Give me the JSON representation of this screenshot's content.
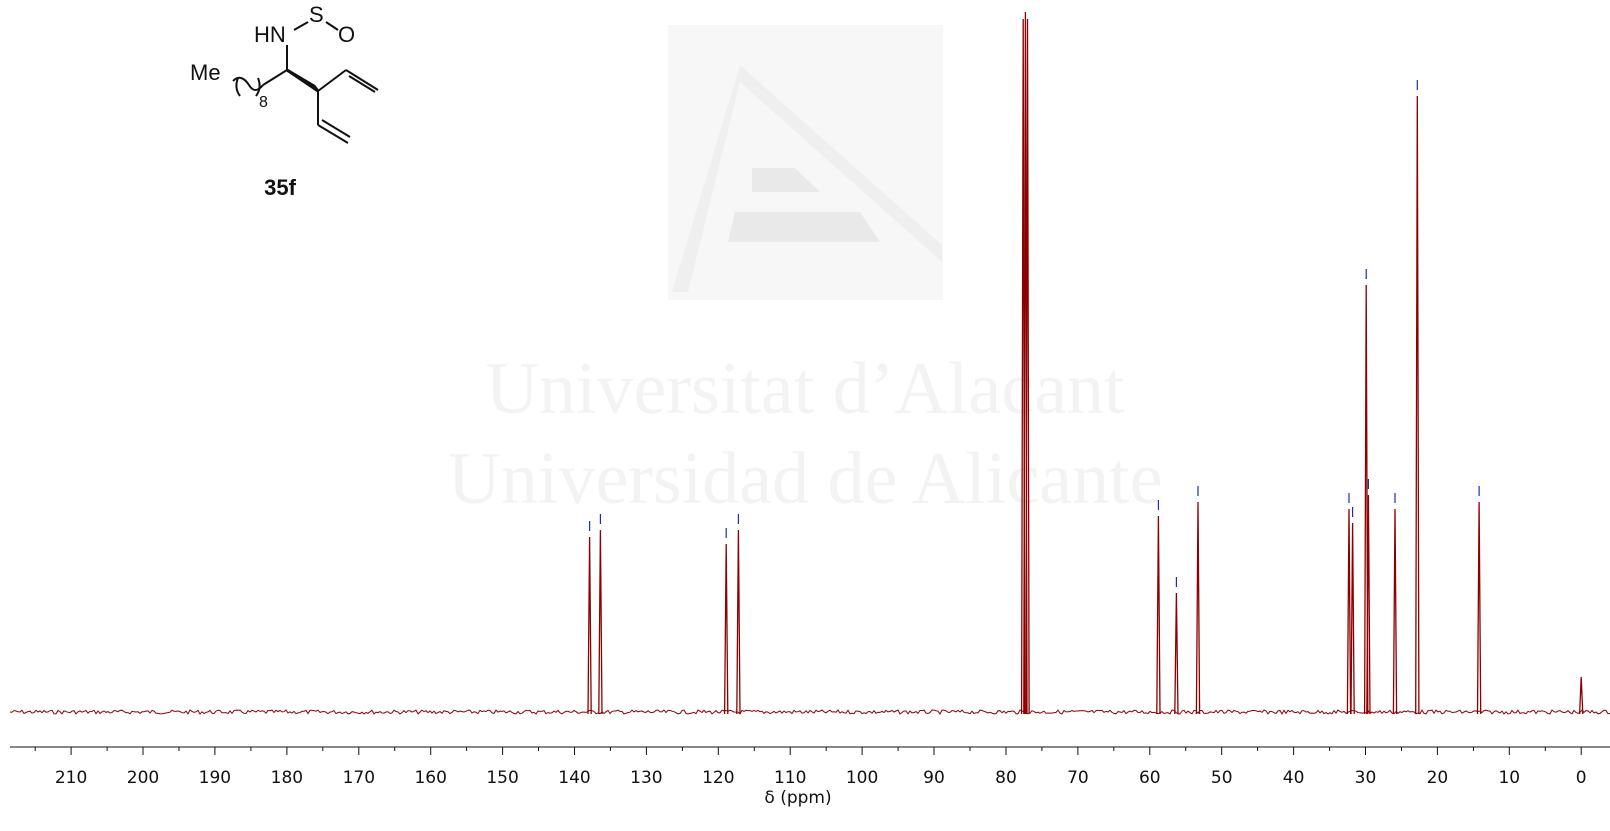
{
  "colors": {
    "spectrum": "#8b0000",
    "peak_marker": "#1a2fa8",
    "axis": "#111111",
    "watermark": "#f2f2f2"
  },
  "watermark": {
    "line1": "Universitat d’Alacant",
    "line2": "Universidad de Alicante",
    "logo_icon": "university-triangle-logo"
  },
  "structure": {
    "compound_label": "35f",
    "atoms": {
      "hn": "HN",
      "s": "S",
      "o": "O",
      "me": "Me",
      "subscript": "8"
    }
  },
  "chart_data": {
    "type": "line",
    "title": "",
    "xlabel": "δ (ppm)",
    "ylabel": "",
    "xlim": [
      218.5,
      -4.0
    ],
    "x_reversed": true,
    "grid": false,
    "x_ticks": [
      210,
      200,
      190,
      180,
      170,
      160,
      150,
      140,
      130,
      120,
      110,
      100,
      90,
      80,
      70,
      60,
      50,
      40,
      30,
      20,
      10,
      0
    ],
    "y_range_relative": [
      0,
      1
    ],
    "peaks": [
      {
        "ppm": 137.9,
        "intensity": 0.25,
        "marked": true
      },
      {
        "ppm": 136.4,
        "intensity": 0.26,
        "marked": true
      },
      {
        "ppm": 118.9,
        "intensity": 0.24,
        "marked": true
      },
      {
        "ppm": 117.2,
        "intensity": 0.26,
        "marked": true
      },
      {
        "ppm": 77.6,
        "intensity": 0.99,
        "marked": false
      },
      {
        "ppm": 77.3,
        "intensity": 1.0,
        "marked": false
      },
      {
        "ppm": 77.0,
        "intensity": 0.99,
        "marked": false
      },
      {
        "ppm": 58.8,
        "intensity": 0.28,
        "marked": true
      },
      {
        "ppm": 56.3,
        "intensity": 0.17,
        "marked": true
      },
      {
        "ppm": 53.3,
        "intensity": 0.3,
        "marked": true
      },
      {
        "ppm": 32.3,
        "intensity": 0.29,
        "marked": true
      },
      {
        "ppm": 31.8,
        "intensity": 0.27,
        "marked": true
      },
      {
        "ppm": 29.9,
        "intensity": 0.61,
        "marked": true
      },
      {
        "ppm": 29.6,
        "intensity": 0.31,
        "marked": true
      },
      {
        "ppm": 25.9,
        "intensity": 0.29,
        "marked": true
      },
      {
        "ppm": 22.8,
        "intensity": 0.88,
        "marked": true
      },
      {
        "ppm": 14.2,
        "intensity": 0.3,
        "marked": true
      },
      {
        "ppm": 0.0,
        "intensity": 0.05,
        "marked": false
      }
    ]
  }
}
